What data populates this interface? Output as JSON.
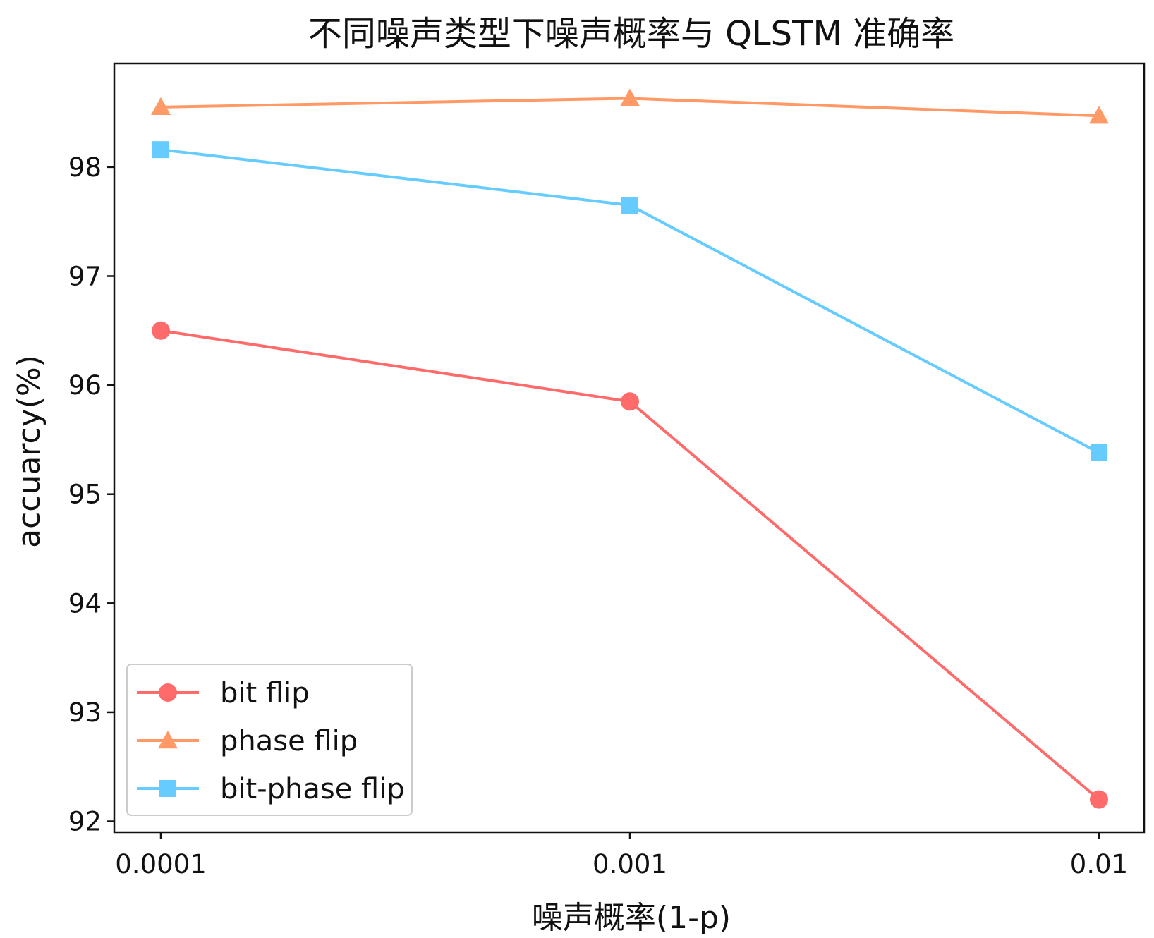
{
  "chart_data": {
    "type": "line",
    "title": "不同噪声类型下噪声概率与 QLSTM 准确率",
    "xlabel": "噪声概率(1-p)",
    "ylabel": "accuarcy(%)",
    "x_scale": "log",
    "categories": [
      "0.0001",
      "0.001",
      "0.01"
    ],
    "x": [
      0.0001,
      0.001,
      0.01
    ],
    "ylim": [
      91.9,
      98.95
    ],
    "yticks": [
      92,
      93,
      94,
      95,
      96,
      97,
      98
    ],
    "grid": false,
    "legend_position": "lower-left",
    "series": [
      {
        "name": "bit flip",
        "marker": "circle",
        "color": "#ff6b6b",
        "values": [
          96.5,
          95.85,
          92.2
        ]
      },
      {
        "name": "phase flip",
        "marker": "triangle",
        "color": "#ff9966",
        "values": [
          98.55,
          98.63,
          98.47
        ]
      },
      {
        "name": "bit-phase flip",
        "marker": "square",
        "color": "#66ccff",
        "values": [
          98.16,
          97.65,
          95.38
        ]
      }
    ]
  }
}
